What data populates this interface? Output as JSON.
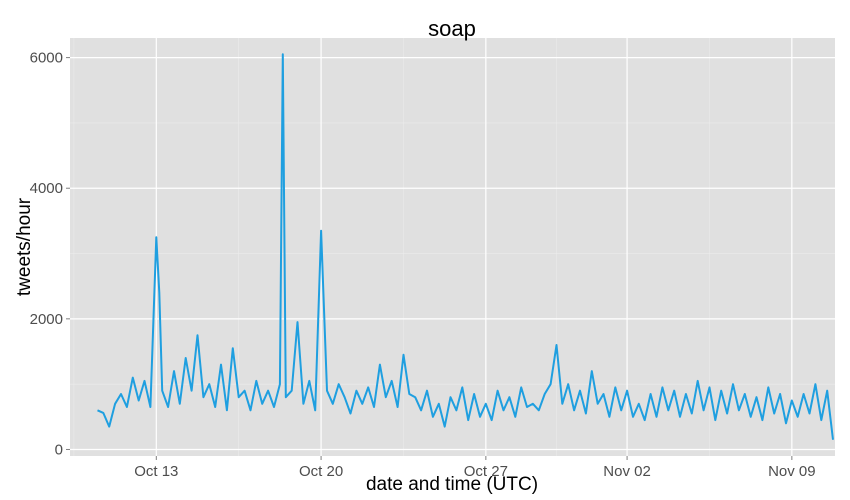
{
  "chart_data": {
    "type": "line",
    "title": "soap",
    "xlabel": "date and time (UTC)",
    "ylabel": "tweets/hour",
    "x_range": [
      "2014-10-09T08:00",
      "2014-11-10T20:00"
    ],
    "ylim": [
      -100,
      6300
    ],
    "x_ticks": [
      {
        "label": "Oct 13",
        "date": "2014-10-13"
      },
      {
        "label": "Oct 20",
        "date": "2014-10-20"
      },
      {
        "label": "Oct 27",
        "date": "2014-10-27"
      },
      {
        "label": "Nov 02",
        "date": "2014-11-02"
      },
      {
        "label": "Nov 09",
        "date": "2014-11-09"
      }
    ],
    "y_ticks": [
      0,
      2000,
      4000,
      6000
    ],
    "grid": true,
    "colors": {
      "line": "#1f9fe0",
      "panel": "#e0e0e0",
      "grid": "#ffffff"
    },
    "series": [
      {
        "x": [
          "2014-10-10T12:00",
          "2014-10-10T18:00",
          "2014-10-11T00:00",
          "2014-10-11T06:00",
          "2014-10-11T12:00",
          "2014-10-11T18:00",
          "2014-10-12T00:00",
          "2014-10-12T06:00",
          "2014-10-12T12:00",
          "2014-10-12T18:00",
          "2014-10-13T00:00",
          "2014-10-13T03:00",
          "2014-10-13T06:00",
          "2014-10-13T12:00",
          "2014-10-13T18:00",
          "2014-10-14T00:00",
          "2014-10-14T06:00",
          "2014-10-14T12:00",
          "2014-10-14T18:00",
          "2014-10-15T00:00",
          "2014-10-15T06:00",
          "2014-10-15T12:00",
          "2014-10-15T18:00",
          "2014-10-16T00:00",
          "2014-10-16T06:00",
          "2014-10-16T12:00",
          "2014-10-16T18:00",
          "2014-10-17T00:00",
          "2014-10-17T06:00",
          "2014-10-17T12:00",
          "2014-10-17T18:00",
          "2014-10-18T00:00",
          "2014-10-18T06:00",
          "2014-10-18T09:00",
          "2014-10-18T12:00",
          "2014-10-18T18:00",
          "2014-10-19T00:00",
          "2014-10-19T06:00",
          "2014-10-19T12:00",
          "2014-10-19T18:00",
          "2014-10-20T00:00",
          "2014-10-20T06:00",
          "2014-10-20T12:00",
          "2014-10-20T18:00",
          "2014-10-21T00:00",
          "2014-10-21T06:00",
          "2014-10-21T12:00",
          "2014-10-21T18:00",
          "2014-10-22T00:00",
          "2014-10-22T06:00",
          "2014-10-22T12:00",
          "2014-10-22T18:00",
          "2014-10-23T00:00",
          "2014-10-23T06:00",
          "2014-10-23T12:00",
          "2014-10-23T18:00",
          "2014-10-24T00:00",
          "2014-10-24T06:00",
          "2014-10-24T12:00",
          "2014-10-24T18:00",
          "2014-10-25T00:00",
          "2014-10-25T06:00",
          "2014-10-25T12:00",
          "2014-10-25T18:00",
          "2014-10-26T00:00",
          "2014-10-26T06:00",
          "2014-10-26T12:00",
          "2014-10-26T18:00",
          "2014-10-27T00:00",
          "2014-10-27T06:00",
          "2014-10-27T12:00",
          "2014-10-27T18:00",
          "2014-10-28T00:00",
          "2014-10-28T06:00",
          "2014-10-28T12:00",
          "2014-10-28T18:00",
          "2014-10-29T00:00",
          "2014-10-29T06:00",
          "2014-10-29T12:00",
          "2014-10-29T18:00",
          "2014-10-30T00:00",
          "2014-10-30T06:00",
          "2014-10-30T12:00",
          "2014-10-30T18:00",
          "2014-10-31T00:00",
          "2014-10-31T06:00",
          "2014-10-31T12:00",
          "2014-10-31T18:00",
          "2014-11-01T00:00",
          "2014-11-01T06:00",
          "2014-11-01T12:00",
          "2014-11-01T18:00",
          "2014-11-02T00:00",
          "2014-11-02T06:00",
          "2014-11-02T12:00",
          "2014-11-02T18:00",
          "2014-11-03T00:00",
          "2014-11-03T06:00",
          "2014-11-03T12:00",
          "2014-11-03T18:00",
          "2014-11-04T00:00",
          "2014-11-04T06:00",
          "2014-11-04T12:00",
          "2014-11-04T18:00",
          "2014-11-05T00:00",
          "2014-11-05T06:00",
          "2014-11-05T12:00",
          "2014-11-05T18:00",
          "2014-11-06T00:00",
          "2014-11-06T06:00",
          "2014-11-06T12:00",
          "2014-11-06T18:00",
          "2014-11-07T00:00",
          "2014-11-07T06:00",
          "2014-11-07T12:00",
          "2014-11-07T18:00",
          "2014-11-08T00:00",
          "2014-11-08T06:00",
          "2014-11-08T12:00",
          "2014-11-08T18:00",
          "2014-11-09T00:00",
          "2014-11-09T06:00",
          "2014-11-09T12:00",
          "2014-11-09T18:00",
          "2014-11-10T00:00",
          "2014-11-10T06:00",
          "2014-11-10T12:00",
          "2014-11-10T18:00"
        ],
        "y": [
          600,
          560,
          350,
          700,
          850,
          650,
          1100,
          750,
          1050,
          650,
          3250,
          2400,
          900,
          650,
          1200,
          700,
          1400,
          900,
          1750,
          800,
          1000,
          650,
          1300,
          600,
          1550,
          800,
          900,
          600,
          1050,
          700,
          900,
          650,
          1000,
          6050,
          800,
          900,
          1950,
          700,
          1050,
          600,
          3350,
          900,
          700,
          1000,
          800,
          550,
          900,
          700,
          950,
          650,
          1300,
          800,
          1050,
          650,
          1450,
          850,
          800,
          600,
          900,
          500,
          700,
          350,
          800,
          600,
          950,
          450,
          850,
          500,
          700,
          450,
          900,
          600,
          800,
          500,
          950,
          650,
          700,
          600,
          850,
          1000,
          1600,
          700,
          1000,
          600,
          900,
          550,
          1200,
          700,
          850,
          500,
          950,
          600,
          900,
          500,
          700,
          450,
          850,
          500,
          950,
          600,
          900,
          500,
          850,
          550,
          1050,
          600,
          950,
          450,
          900,
          550,
          1000,
          600,
          850,
          500,
          800,
          450,
          950,
          550,
          850,
          400,
          750,
          500,
          850,
          550,
          1000,
          450,
          900,
          150
        ]
      }
    ]
  }
}
